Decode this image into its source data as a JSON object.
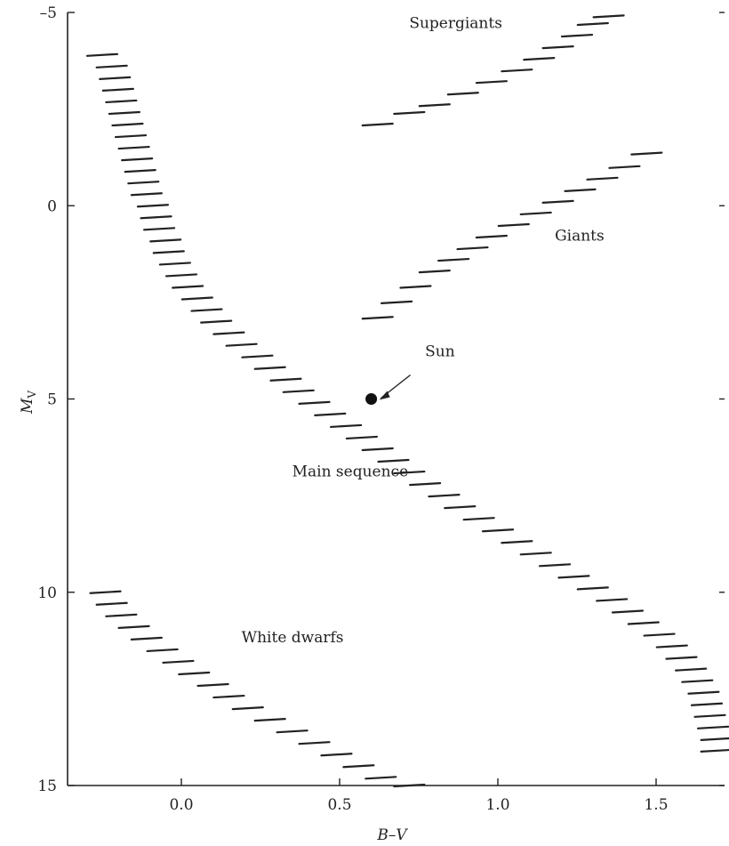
{
  "chart_data": {
    "type": "scatter",
    "title": "",
    "xlabel": "B–V",
    "ylabel": "M",
    "ylabel_sub": "V",
    "xlim": [
      -0.3,
      1.75
    ],
    "ylim": [
      15,
      -5
    ],
    "y_inverted": true,
    "xticks": [
      0.0,
      0.5,
      1.0,
      1.5
    ],
    "xtick_labels": [
      "0.0",
      "0.5",
      "1.0",
      "1.5"
    ],
    "yticks": [
      -5,
      0,
      5,
      10,
      15
    ],
    "ytick_labels": [
      "–5",
      "0",
      "5",
      "10",
      "15"
    ],
    "series": [
      {
        "name": "Main sequence",
        "mark": "dash",
        "points": [
          [
            -0.25,
            -3.9
          ],
          [
            -0.22,
            -3.6
          ],
          [
            -0.21,
            -3.3
          ],
          [
            -0.2,
            -3.0
          ],
          [
            -0.19,
            -2.7
          ],
          [
            -0.18,
            -2.4
          ],
          [
            -0.17,
            -2.1
          ],
          [
            -0.16,
            -1.8
          ],
          [
            -0.15,
            -1.5
          ],
          [
            -0.14,
            -1.2
          ],
          [
            -0.13,
            -0.9
          ],
          [
            -0.12,
            -0.6
          ],
          [
            -0.11,
            -0.3
          ],
          [
            -0.09,
            0.0
          ],
          [
            -0.08,
            0.3
          ],
          [
            -0.07,
            0.6
          ],
          [
            -0.05,
            0.9
          ],
          [
            -0.04,
            1.2
          ],
          [
            -0.02,
            1.5
          ],
          [
            0.0,
            1.8
          ],
          [
            0.02,
            2.1
          ],
          [
            0.05,
            2.4
          ],
          [
            0.08,
            2.7
          ],
          [
            0.11,
            3.0
          ],
          [
            0.15,
            3.3
          ],
          [
            0.19,
            3.6
          ],
          [
            0.24,
            3.9
          ],
          [
            0.28,
            4.2
          ],
          [
            0.33,
            4.5
          ],
          [
            0.37,
            4.8
          ],
          [
            0.42,
            5.1
          ],
          [
            0.47,
            5.4
          ],
          [
            0.52,
            5.7
          ],
          [
            0.57,
            6.0
          ],
          [
            0.62,
            6.3
          ],
          [
            0.67,
            6.6
          ],
          [
            0.72,
            6.9
          ],
          [
            0.77,
            7.2
          ],
          [
            0.83,
            7.5
          ],
          [
            0.88,
            7.8
          ],
          [
            0.94,
            8.1
          ],
          [
            1.0,
            8.4
          ],
          [
            1.06,
            8.7
          ],
          [
            1.12,
            9.0
          ],
          [
            1.18,
            9.3
          ],
          [
            1.24,
            9.6
          ],
          [
            1.3,
            9.9
          ],
          [
            1.36,
            10.2
          ],
          [
            1.41,
            10.5
          ],
          [
            1.46,
            10.8
          ],
          [
            1.51,
            11.1
          ],
          [
            1.55,
            11.4
          ],
          [
            1.58,
            11.7
          ],
          [
            1.61,
            12.0
          ],
          [
            1.63,
            12.3
          ],
          [
            1.65,
            12.6
          ],
          [
            1.66,
            12.9
          ],
          [
            1.67,
            13.2
          ],
          [
            1.68,
            13.5
          ],
          [
            1.69,
            13.8
          ],
          [
            1.69,
            14.1
          ]
        ]
      },
      {
        "name": "Giants",
        "mark": "dash",
        "points": [
          [
            0.62,
            2.9
          ],
          [
            0.68,
            2.5
          ],
          [
            0.74,
            2.1
          ],
          [
            0.8,
            1.7
          ],
          [
            0.86,
            1.4
          ],
          [
            0.92,
            1.1
          ],
          [
            0.98,
            0.8
          ],
          [
            1.05,
            0.5
          ],
          [
            1.12,
            0.2
          ],
          [
            1.19,
            -0.1
          ],
          [
            1.26,
            -0.4
          ],
          [
            1.33,
            -0.7
          ],
          [
            1.4,
            -1.0
          ],
          [
            1.47,
            -1.35
          ]
        ]
      },
      {
        "name": "Supergiants",
        "mark": "dash",
        "points": [
          [
            0.62,
            -2.1
          ],
          [
            0.72,
            -2.4
          ],
          [
            0.8,
            -2.6
          ],
          [
            0.89,
            -2.9
          ],
          [
            0.98,
            -3.2
          ],
          [
            1.06,
            -3.5
          ],
          [
            1.13,
            -3.8
          ],
          [
            1.19,
            -4.1
          ],
          [
            1.25,
            -4.4
          ],
          [
            1.3,
            -4.7
          ],
          [
            1.35,
            -4.9
          ]
        ]
      },
      {
        "name": "White dwarfs",
        "mark": "dash",
        "points": [
          [
            -0.24,
            10.0
          ],
          [
            -0.22,
            10.3
          ],
          [
            -0.19,
            10.6
          ],
          [
            -0.15,
            10.9
          ],
          [
            -0.11,
            11.2
          ],
          [
            -0.06,
            11.5
          ],
          [
            -0.01,
            11.8
          ],
          [
            0.04,
            12.1
          ],
          [
            0.1,
            12.4
          ],
          [
            0.15,
            12.7
          ],
          [
            0.21,
            13.0
          ],
          [
            0.28,
            13.3
          ],
          [
            0.35,
            13.6
          ],
          [
            0.42,
            13.9
          ],
          [
            0.49,
            14.2
          ],
          [
            0.56,
            14.5
          ],
          [
            0.63,
            14.8
          ],
          [
            0.72,
            15.0
          ]
        ]
      }
    ],
    "annotations": [
      {
        "text": "Supergiants",
        "x": 0.72,
        "y": -4.6
      },
      {
        "text": "Giants",
        "x": 1.18,
        "y": 0.9
      },
      {
        "text": "Main sequence",
        "x": 0.35,
        "y": 7.0
      },
      {
        "text": "White dwarfs",
        "x": 0.19,
        "y": 11.3
      },
      {
        "text": "Sun",
        "x": 0.77,
        "y": 3.9
      }
    ],
    "highlight": {
      "label": "Sun",
      "x": 0.6,
      "y": 5.0
    }
  }
}
